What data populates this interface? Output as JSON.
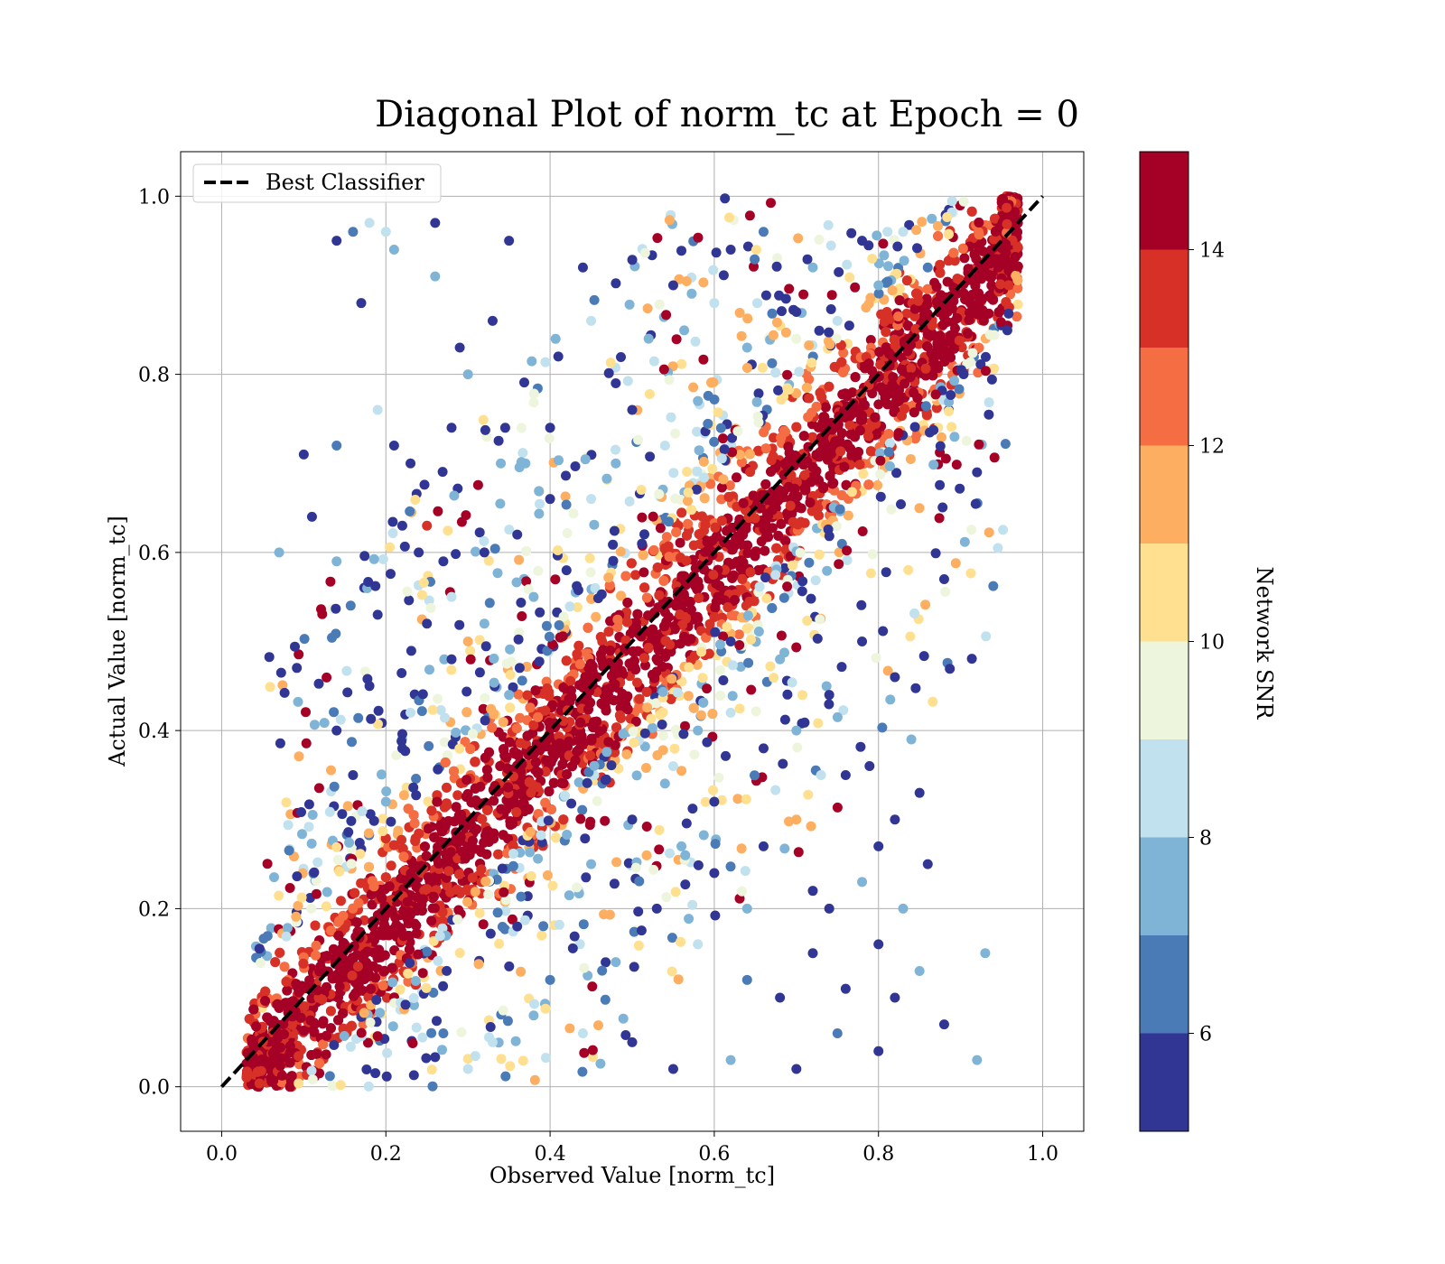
{
  "chart_data": {
    "type": "scatter",
    "title": "Diagonal Plot of norm_tc at Epoch = 0",
    "xlabel": "Observed Value [norm_tc]",
    "ylabel": "Actual Value [norm_tc]",
    "xlim": [
      -0.05,
      1.05
    ],
    "ylim": [
      -0.05,
      1.05
    ],
    "xticks": [
      "0.0",
      "0.2",
      "0.4",
      "0.6",
      "0.8",
      "1.0"
    ],
    "yticks": [
      "0.0",
      "0.2",
      "0.4",
      "0.6",
      "0.8",
      "1.0"
    ],
    "grid": true,
    "legend": {
      "position": "top-left",
      "entries": [
        {
          "label": "Best Classifier",
          "style": "dashed",
          "color": "#000000"
        }
      ]
    },
    "reference_line": {
      "name": "Best Classifier",
      "x": [
        0,
        1
      ],
      "y": [
        0,
        1
      ]
    },
    "colorbar": {
      "label": "Network SNR",
      "range": [
        5,
        15
      ],
      "ticks": [
        "6",
        "8",
        "10",
        "12",
        "14"
      ],
      "bins": [
        {
          "from": 14,
          "to": 15,
          "color": "#a50026"
        },
        {
          "from": 13,
          "to": 14,
          "color": "#d73027"
        },
        {
          "from": 12,
          "to": 13,
          "color": "#f46d43"
        },
        {
          "from": 11,
          "to": 12,
          "color": "#fdae61"
        },
        {
          "from": 10,
          "to": 11,
          "color": "#fee090"
        },
        {
          "from": 9,
          "to": 10,
          "color": "#eef5dd"
        },
        {
          "from": 8,
          "to": 9,
          "color": "#c0e1ed"
        },
        {
          "from": 7,
          "to": 8,
          "color": "#7fb4d6"
        },
        {
          "from": 6,
          "to": 7,
          "color": "#4a7bb7"
        },
        {
          "from": 5,
          "to": 6,
          "color": "#313695"
        }
      ]
    },
    "series": [
      {
        "points": [
          [
            0.1,
            0.71,
            5.5
          ],
          [
            0.11,
            0.64,
            5.5
          ],
          [
            0.14,
            0.72,
            6.5
          ],
          [
            0.14,
            0.59,
            7.5
          ],
          [
            0.14,
            0.95,
            5.5
          ],
          [
            0.16,
            0.96,
            6.5
          ],
          [
            0.18,
            0.97,
            8.5
          ],
          [
            0.2,
            0.96,
            8.5
          ],
          [
            0.21,
            0.94,
            7.5
          ],
          [
            0.17,
            0.88,
            5.5
          ],
          [
            0.26,
            0.91,
            7.5
          ],
          [
            0.29,
            0.83,
            5.5
          ],
          [
            0.26,
            0.97,
            5.5
          ],
          [
            0.3,
            0.8,
            7.5
          ],
          [
            0.33,
            0.86,
            5.5
          ],
          [
            0.35,
            0.95,
            5.5
          ],
          [
            0.25,
            0.63,
            13.5
          ],
          [
            0.22,
            0.63,
            5.5
          ],
          [
            0.28,
            0.74,
            5.5
          ],
          [
            0.19,
            0.53,
            5.5
          ],
          [
            0.07,
            0.6,
            7.5
          ],
          [
            0.23,
            0.7,
            5.5
          ],
          [
            0.21,
            0.72,
            5.5
          ],
          [
            0.19,
            0.76,
            8.5
          ],
          [
            0.3,
            0.5,
            11.5
          ],
          [
            0.32,
            0.6,
            5.5
          ],
          [
            0.27,
            0.59,
            5.5
          ],
          [
            0.28,
            0.55,
            8.5
          ],
          [
            0.37,
            0.7,
            7.5
          ],
          [
            0.4,
            0.74,
            5.5
          ],
          [
            0.41,
            0.82,
            5.5
          ],
          [
            0.45,
            0.86,
            8.5
          ],
          [
            0.48,
            0.79,
            5.5
          ],
          [
            0.44,
            0.92,
            5.5
          ],
          [
            0.52,
            0.84,
            7.5
          ],
          [
            0.55,
            0.9,
            5.5
          ],
          [
            0.58,
            0.77,
            7.5
          ],
          [
            0.6,
            0.88,
            8.5
          ],
          [
            0.62,
            0.94,
            5.5
          ],
          [
            0.64,
            0.83,
            7.5
          ],
          [
            0.66,
            0.96,
            6.5
          ],
          [
            0.7,
            0.87,
            5.5
          ],
          [
            0.72,
            0.92,
            7.5
          ],
          [
            0.75,
            0.86,
            8.5
          ],
          [
            0.78,
            0.95,
            5.5
          ],
          [
            0.8,
            0.9,
            7.5
          ],
          [
            0.83,
            0.96,
            8.5
          ],
          [
            0.86,
            0.92,
            6.5
          ],
          [
            0.62,
            0.5,
            5.5
          ],
          [
            0.68,
            0.48,
            7.5
          ],
          [
            0.74,
            0.44,
            5.5
          ],
          [
            0.78,
            0.5,
            5.5
          ],
          [
            0.82,
            0.46,
            5.5
          ],
          [
            0.84,
            0.39,
            7.5
          ],
          [
            0.76,
            0.35,
            5.5
          ],
          [
            0.7,
            0.3,
            11.5
          ],
          [
            0.66,
            0.27,
            5.5
          ],
          [
            0.72,
            0.22,
            5.5
          ],
          [
            0.8,
            0.27,
            5.5
          ],
          [
            0.82,
            0.3,
            5.5
          ],
          [
            0.86,
            0.25,
            5.5
          ],
          [
            0.88,
            0.57,
            5.5
          ],
          [
            0.92,
            0.69,
            5.5
          ],
          [
            0.85,
            0.13,
            7.5
          ],
          [
            0.93,
            0.15,
            7.5
          ],
          [
            0.92,
            0.03,
            7.5
          ],
          [
            0.88,
            0.07,
            5.5
          ],
          [
            0.82,
            0.1,
            5.5
          ],
          [
            0.8,
            0.04,
            5.5
          ],
          [
            0.75,
            0.06,
            6.5
          ],
          [
            0.7,
            0.02,
            5.5
          ],
          [
            0.62,
            0.03,
            7.5
          ],
          [
            0.55,
            0.02,
            5.5
          ],
          [
            0.5,
            0.05,
            5.5
          ],
          [
            0.44,
            0.06,
            8.5
          ],
          [
            0.4,
            0.12,
            6.5
          ],
          [
            0.36,
            0.18,
            5.5
          ],
          [
            0.48,
            0.14,
            7.5
          ],
          [
            0.53,
            0.2,
            5.5
          ],
          [
            0.58,
            0.16,
            8.5
          ],
          [
            0.6,
            0.24,
            5.5
          ],
          [
            0.64,
            0.12,
            6.5
          ],
          [
            0.68,
            0.1,
            5.5
          ],
          [
            0.72,
            0.15,
            5.5
          ],
          [
            0.76,
            0.11,
            5.5
          ],
          [
            0.38,
            0.08,
            7.5
          ],
          [
            0.33,
            0.05,
            8.5
          ],
          [
            0.3,
            0.02,
            8.5
          ],
          [
            0.27,
            0.06,
            6.5
          ],
          [
            0.45,
            0.25,
            7.5
          ],
          [
            0.5,
            0.3,
            5.5
          ],
          [
            0.55,
            0.36,
            8.5
          ],
          [
            0.58,
            0.4,
            7.5
          ],
          [
            0.62,
            0.42,
            8.5
          ],
          [
            0.66,
            0.38,
            5.5
          ],
          [
            0.7,
            0.4,
            7.5
          ],
          [
            0.73,
            0.35,
            8.5
          ],
          [
            0.6,
            0.32,
            5.5
          ],
          [
            0.56,
            0.27,
            7.5
          ],
          [
            0.64,
            0.2,
            7.5
          ],
          [
            0.38,
            0.55,
            7.5
          ],
          [
            0.36,
            0.62,
            5.5
          ],
          [
            0.42,
            0.58,
            5.5
          ],
          [
            0.45,
            0.66,
            8.5
          ],
          [
            0.48,
            0.7,
            7.5
          ],
          [
            0.5,
            0.76,
            5.5
          ],
          [
            0.54,
            0.72,
            8.5
          ],
          [
            0.4,
            0.66,
            5.5
          ],
          [
            0.34,
            0.7,
            7.5
          ],
          [
            0.32,
            0.52,
            7.5
          ],
          [
            0.28,
            0.48,
            5.5
          ],
          [
            0.25,
            0.52,
            5.5
          ],
          [
            0.23,
            0.42,
            8.5
          ],
          [
            0.22,
            0.38,
            5.5
          ],
          [
            0.2,
            0.32,
            7.5
          ],
          [
            0.16,
            0.35,
            5.5
          ],
          [
            0.14,
            0.4,
            5.5
          ],
          [
            0.18,
            0.45,
            5.5
          ],
          [
            0.24,
            0.6,
            5.5
          ],
          [
            0.35,
            0.44,
            7.5
          ],
          [
            0.8,
            0.16,
            5.5
          ],
          [
            0.83,
            0.2,
            7.5
          ],
          [
            0.78,
            0.23,
            7.5
          ],
          [
            0.74,
            0.2,
            5.5
          ],
          [
            0.85,
            0.33,
            5.5
          ]
        ]
      }
    ]
  }
}
